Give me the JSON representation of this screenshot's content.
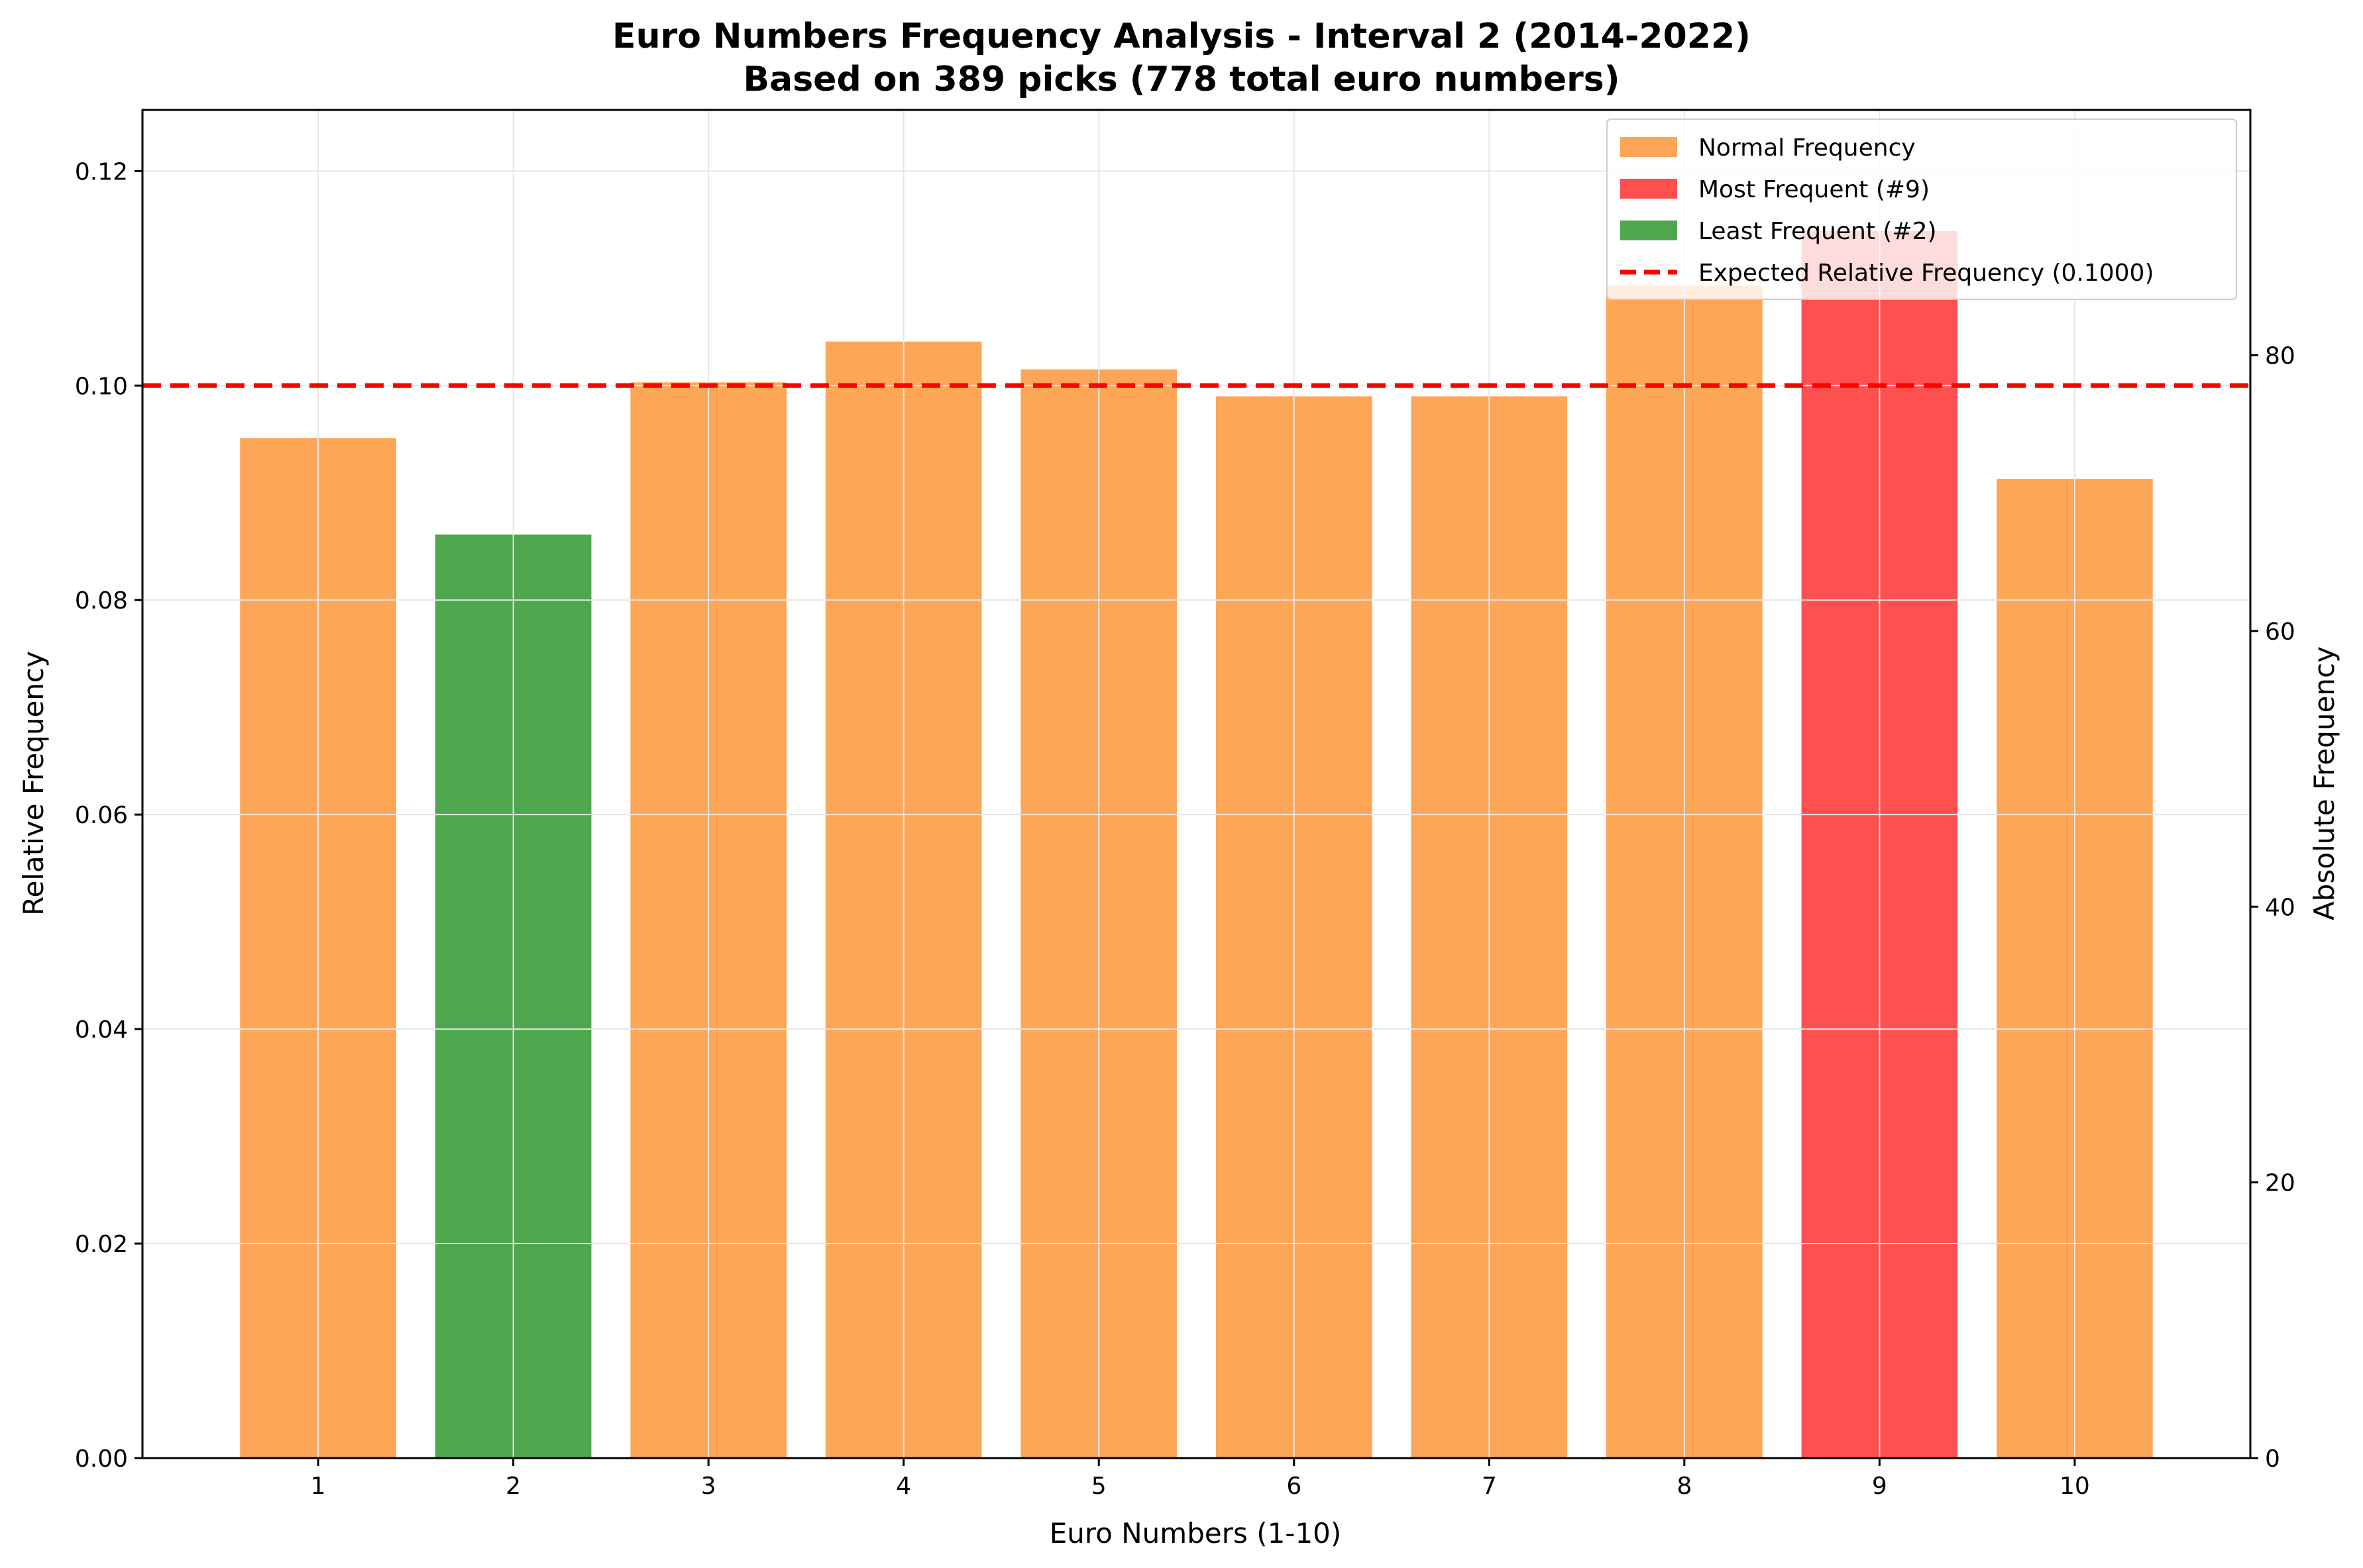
{
  "chart_data": {
    "type": "bar",
    "title": "Euro Numbers Frequency Analysis - Interval 2 (2014-2022)",
    "subtitle": "Based on 389 picks (778 total euro numbers)",
    "xlabel": "Euro Numbers (1-10)",
    "ylabel": "Relative Frequency",
    "y2label": "Absolute Frequency",
    "categories": [
      "1",
      "2",
      "3",
      "4",
      "5",
      "6",
      "7",
      "8",
      "9",
      "10"
    ],
    "values": [
      0.0951,
      0.0861,
      0.1003,
      0.1041,
      0.1015,
      0.099,
      0.099,
      0.1093,
      0.1144,
      0.0913
    ],
    "absolute_values": [
      74,
      67,
      78,
      81,
      79,
      77,
      77,
      85,
      89,
      71
    ],
    "bar_roles": [
      "normal",
      "normal",
      "normal",
      "normal",
      "normal",
      "normal",
      "normal",
      "normal",
      "most",
      "normal"
    ],
    "bar_roles_least_index": 1,
    "ylim": [
      0,
      0.1257
    ],
    "y2lim": [
      0,
      97.8
    ],
    "yticks": [
      "0.00",
      "0.02",
      "0.04",
      "0.06",
      "0.08",
      "0.10",
      "0.12"
    ],
    "ytick_values": [
      0,
      0.02,
      0.04,
      0.06,
      0.08,
      0.1,
      0.12
    ],
    "y2ticks": [
      "0",
      "20",
      "40",
      "60",
      "80"
    ],
    "y2tick_values": [
      0,
      20,
      40,
      60,
      80
    ],
    "expected_value": 0.1,
    "grid": true,
    "legend_position": "top-right",
    "legend": [
      {
        "label": "Normal Frequency",
        "kind": "patch",
        "role": "normal"
      },
      {
        "label": "Most Frequent (#9)",
        "kind": "patch",
        "role": "most"
      },
      {
        "label": "Least Frequent (#2)",
        "kind": "patch",
        "role": "least"
      },
      {
        "label": "Expected Relative Frequency (0.1000)",
        "kind": "dashed-line",
        "role": "expected"
      }
    ],
    "colors": {
      "normal": "#fda657",
      "most": "#ff5050",
      "least": "#4fa74d",
      "expected": "#ff0000"
    }
  }
}
